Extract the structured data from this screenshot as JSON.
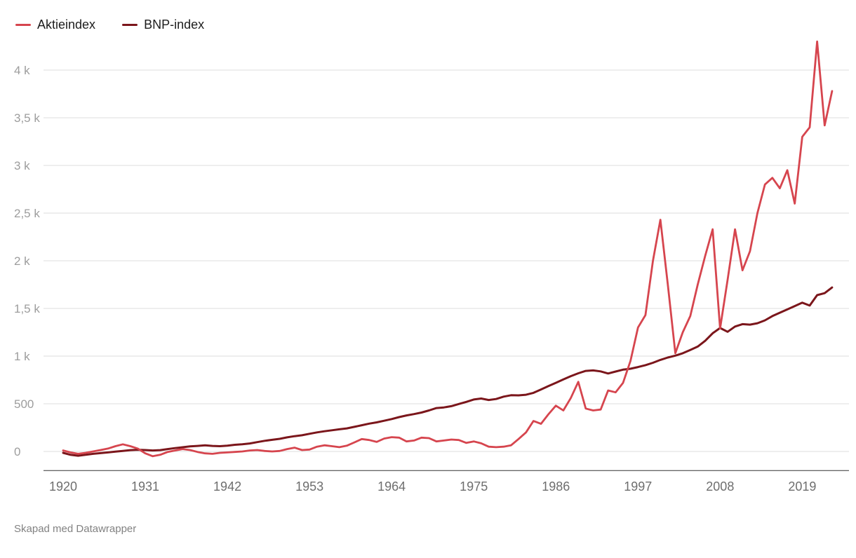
{
  "legend": {
    "items": [
      {
        "label": "Aktieindex",
        "color": "#d6454e"
      },
      {
        "label": "BNP-index",
        "color": "#7b161b"
      }
    ]
  },
  "footer": {
    "credit": "Skapad med Datawrapper"
  },
  "chart_data": {
    "type": "line",
    "title": "",
    "xlabel": "",
    "ylabel": "",
    "grid": "horizontal",
    "legend_position": "top-left",
    "xlim": [
      1918.5,
      2025
    ],
    "ylim": [
      -200,
      4450
    ],
    "x_ticks": [
      1920,
      1931,
      1942,
      1953,
      1964,
      1975,
      1986,
      1997,
      2008,
      2019
    ],
    "y_ticks": [
      {
        "value": 0,
        "label": "0"
      },
      {
        "value": 500,
        "label": "500"
      },
      {
        "value": 1000,
        "label": "1 k"
      },
      {
        "value": 1500,
        "label": "1,5 k"
      },
      {
        "value": 2000,
        "label": "2 k"
      },
      {
        "value": 2500,
        "label": "2,5 k"
      },
      {
        "value": 3000,
        "label": "3 k"
      },
      {
        "value": 3500,
        "label": "3,5 k"
      },
      {
        "value": 4000,
        "label": "4 k"
      }
    ],
    "years": [
      1920,
      1921,
      1922,
      1923,
      1924,
      1925,
      1926,
      1927,
      1928,
      1929,
      1930,
      1931,
      1932,
      1933,
      1934,
      1935,
      1936,
      1937,
      1938,
      1939,
      1940,
      1941,
      1942,
      1943,
      1944,
      1945,
      1946,
      1947,
      1948,
      1949,
      1950,
      1951,
      1952,
      1953,
      1954,
      1955,
      1956,
      1957,
      1958,
      1959,
      1960,
      1961,
      1962,
      1963,
      1964,
      1965,
      1966,
      1967,
      1968,
      1969,
      1970,
      1971,
      1972,
      1973,
      1974,
      1975,
      1976,
      1977,
      1978,
      1979,
      1980,
      1981,
      1982,
      1983,
      1984,
      1985,
      1986,
      1987,
      1988,
      1989,
      1990,
      1991,
      1992,
      1993,
      1994,
      1995,
      1996,
      1997,
      1998,
      1999,
      2000,
      2001,
      2002,
      2003,
      2004,
      2005,
      2006,
      2007,
      2008,
      2009,
      2010,
      2011,
      2012,
      2013,
      2014,
      2015,
      2016,
      2017,
      2018,
      2019,
      2020,
      2021,
      2022,
      2023
    ],
    "series": [
      {
        "name": "Aktieindex",
        "color": "#d6454e",
        "values": [
          10,
          -10,
          -25,
          -15,
          0,
          15,
          30,
          55,
          75,
          55,
          30,
          -20,
          -50,
          -35,
          -5,
          10,
          25,
          15,
          -5,
          -20,
          -25,
          -15,
          -10,
          -5,
          0,
          10,
          15,
          5,
          0,
          5,
          25,
          40,
          15,
          20,
          50,
          65,
          55,
          45,
          60,
          95,
          130,
          120,
          100,
          135,
          150,
          145,
          105,
          115,
          145,
          140,
          105,
          115,
          125,
          120,
          90,
          105,
          85,
          50,
          45,
          50,
          65,
          130,
          200,
          320,
          290,
          390,
          480,
          430,
          560,
          730,
          450,
          430,
          440,
          640,
          620,
          720,
          950,
          1300,
          1430,
          2000,
          2430,
          1750,
          1030,
          1250,
          1420,
          1750,
          2050,
          2330,
          1290,
          1800,
          2330,
          1900,
          2100,
          2500,
          2800,
          2870,
          2760,
          2950,
          2600,
          3300,
          3400,
          4300,
          3420,
          3780
        ]
      },
      {
        "name": "BNP-index",
        "color": "#7b161b",
        "values": [
          -15,
          -35,
          -45,
          -35,
          -25,
          -18,
          -10,
          -2,
          6,
          14,
          18,
          15,
          10,
          14,
          25,
          35,
          44,
          54,
          58,
          64,
          58,
          55,
          60,
          70,
          76,
          84,
          98,
          112,
          122,
          132,
          148,
          160,
          170,
          185,
          200,
          212,
          222,
          232,
          242,
          258,
          275,
          292,
          305,
          322,
          340,
          360,
          378,
          392,
          408,
          430,
          455,
          462,
          475,
          498,
          520,
          545,
          555,
          540,
          550,
          575,
          590,
          588,
          595,
          615,
          650,
          685,
          720,
          755,
          790,
          820,
          845,
          850,
          840,
          818,
          838,
          858,
          868,
          885,
          905,
          930,
          960,
          985,
          1005,
          1030,
          1065,
          1100,
          1160,
          1240,
          1295,
          1255,
          1310,
          1335,
          1330,
          1345,
          1375,
          1420,
          1455,
          1490,
          1525,
          1560,
          1530,
          1640,
          1660,
          1720
        ]
      }
    ]
  }
}
